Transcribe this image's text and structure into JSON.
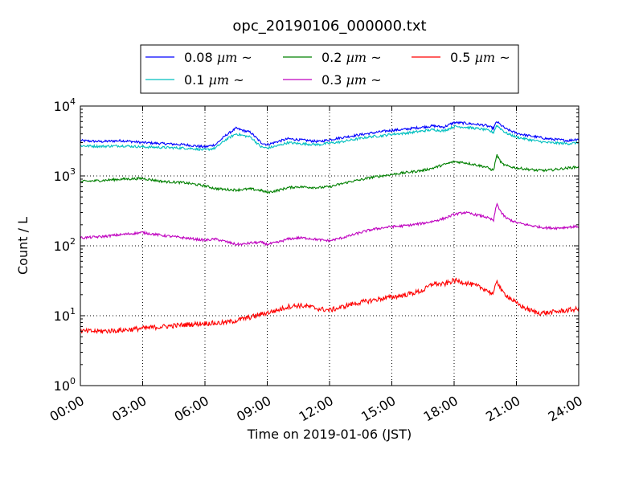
{
  "chart_data": {
    "type": "line",
    "title": "opc_20190106_000000.txt",
    "xlabel": "Time on 2019-01-06 (JST)",
    "ylabel": "Count / L",
    "y_scale": "log",
    "x_unit": "hours",
    "xlim": [
      0,
      24
    ],
    "ylim": [
      1,
      10000
    ],
    "grid": true,
    "legend_position": "top-center",
    "x_ticks": [
      0,
      3,
      6,
      9,
      12,
      15,
      18,
      21,
      24
    ],
    "x_tick_labels": [
      "00:00",
      "03:00",
      "06:00",
      "09:00",
      "12:00",
      "15:00",
      "18:00",
      "21:00",
      "24:00"
    ],
    "y_ticks": [
      1,
      10,
      100,
      1000,
      10000
    ],
    "y_tick_labels": [
      {
        "base": "10",
        "exp": "0"
      },
      {
        "base": "10",
        "exp": "1"
      },
      {
        "base": "10",
        "exp": "2"
      },
      {
        "base": "10",
        "exp": "3"
      },
      {
        "base": "10",
        "exp": "4"
      }
    ],
    "x": [
      0,
      1,
      2,
      3,
      4,
      5,
      5.5,
      6,
      6.5,
      7,
      7.5,
      7.8,
      8.2,
      8.7,
      9,
      9.5,
      10,
      10.5,
      11,
      11.5,
      12,
      12.5,
      13,
      13.5,
      14,
      14.5,
      15,
      15.5,
      16,
      16.5,
      17,
      17.5,
      18,
      18.5,
      19,
      19.5,
      19.9,
      20.05,
      20.3,
      20.5,
      21,
      21.5,
      22,
      22.5,
      23,
      23.5,
      24
    ],
    "series": [
      {
        "name": "0.08 µm ~",
        "label_text": "0.08 ",
        "label_unit": "µm",
        "label_suffix": " ~",
        "color": "#0000ff",
        "values": [
          3200,
          3100,
          3200,
          3000,
          2900,
          2800,
          2700,
          2600,
          2800,
          3800,
          4800,
          4500,
          4200,
          3000,
          2800,
          3100,
          3400,
          3300,
          3200,
          3100,
          3300,
          3500,
          3700,
          3900,
          4100,
          4300,
          4500,
          4600,
          4800,
          5000,
          5200,
          5000,
          5800,
          5700,
          5500,
          5300,
          4800,
          6000,
          5200,
          4700,
          4100,
          3800,
          3600,
          3400,
          3300,
          3200,
          3400
        ]
      },
      {
        "name": "0.1 µm ~",
        "label_text": "0.1 ",
        "label_unit": "µm",
        "label_suffix": " ~",
        "color": "#00bfbf",
        "values": [
          2700,
          2650,
          2700,
          2600,
          2550,
          2500,
          2450,
          2350,
          2500,
          3300,
          4000,
          3800,
          3600,
          2600,
          2500,
          2700,
          3000,
          2900,
          2850,
          2800,
          2950,
          3050,
          3250,
          3450,
          3650,
          3750,
          3950,
          4050,
          4200,
          4400,
          4600,
          4400,
          5100,
          5000,
          4800,
          4600,
          4200,
          5300,
          4600,
          4100,
          3600,
          3350,
          3150,
          3000,
          2950,
          2900,
          3000
        ]
      },
      {
        "name": "0.2 µm ~",
        "label_text": "0.2 ",
        "label_unit": "µm",
        "label_suffix": " ~",
        "color": "#008000",
        "values": [
          830,
          860,
          900,
          920,
          830,
          800,
          760,
          720,
          660,
          640,
          630,
          640,
          650,
          620,
          580,
          620,
          680,
          700,
          690,
          680,
          700,
          760,
          830,
          880,
          950,
          1000,
          1050,
          1100,
          1150,
          1200,
          1300,
          1450,
          1600,
          1550,
          1450,
          1350,
          1200,
          2000,
          1500,
          1400,
          1300,
          1250,
          1200,
          1200,
          1250,
          1300,
          1350
        ]
      },
      {
        "name": "0.3 µm ~",
        "label_text": "0.3 ",
        "label_unit": "µm",
        "label_suffix": " ~",
        "color": "#bf00bf",
        "values": [
          130,
          135,
          145,
          155,
          140,
          130,
          125,
          120,
          125,
          115,
          105,
          105,
          110,
          112,
          105,
          112,
          125,
          130,
          128,
          122,
          118,
          128,
          140,
          155,
          170,
          180,
          188,
          192,
          200,
          210,
          225,
          245,
          280,
          300,
          280,
          260,
          230,
          400,
          290,
          250,
          215,
          200,
          188,
          180,
          180,
          185,
          190
        ]
      },
      {
        "name": "0.5 µm ~",
        "label_text": "0.5 ",
        "label_unit": "µm",
        "label_suffix": " ~",
        "color": "#ff0000",
        "values": [
          6,
          6,
          6.2,
          6.6,
          7,
          7.4,
          7.6,
          7.8,
          7.8,
          8,
          8.5,
          9,
          9.5,
          10.5,
          11,
          12,
          13.5,
          14,
          13.5,
          12.5,
          12,
          13,
          14.5,
          15.5,
          16.5,
          17.5,
          18.5,
          19.5,
          21,
          23,
          29,
          28,
          32,
          30,
          27,
          24,
          20,
          33,
          22,
          20,
          15,
          12.5,
          11,
          11,
          11.5,
          12,
          12.5
        ]
      }
    ]
  }
}
